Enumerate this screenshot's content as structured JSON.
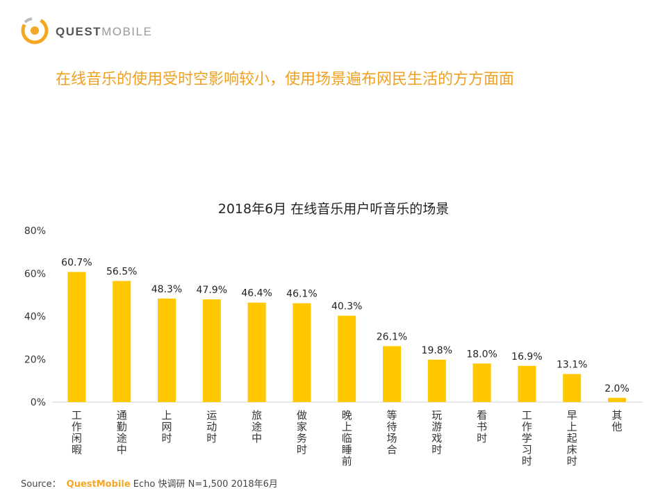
{
  "logo": {
    "text_bold": "QUEST",
    "text_light": "MOBILE"
  },
  "headline": "在线音乐的使用受时空影响较小，使用场景遍布网民生活的方方面面",
  "chart_data": {
    "type": "bar",
    "title": "2018年6月 在线音乐用户听音乐的场景",
    "categories": [
      "工作闲暇",
      "通勤途中",
      "上网时",
      "运动时",
      "旅途中",
      "做家务时",
      "晚上临睡前",
      "等待场合",
      "玩游戏时",
      "看书时",
      "工作学习时",
      "早上起床时",
      "其他"
    ],
    "values": [
      60.7,
      56.5,
      48.3,
      47.9,
      46.4,
      46.1,
      40.3,
      26.1,
      19.8,
      18.0,
      16.9,
      13.1,
      2.0
    ],
    "value_labels": [
      "60.7%",
      "56.5%",
      "48.3%",
      "47.9%",
      "46.4%",
      "46.1%",
      "40.3%",
      "26.1%",
      "19.8%",
      "18.0%",
      "16.9%",
      "13.1%",
      "2.0%"
    ],
    "yticks": [
      "0%",
      "20%",
      "40%",
      "60%",
      "80%"
    ],
    "ytick_values": [
      0,
      20,
      40,
      60,
      80
    ],
    "ylim": [
      0,
      80
    ],
    "grid": false,
    "legend": "none",
    "bar_color": "#ffc800"
  },
  "source": {
    "prefix": "Source：",
    "brand": "QuestMobile",
    "suffix": "Echo 快调研 N=1,500 2018年6月"
  }
}
